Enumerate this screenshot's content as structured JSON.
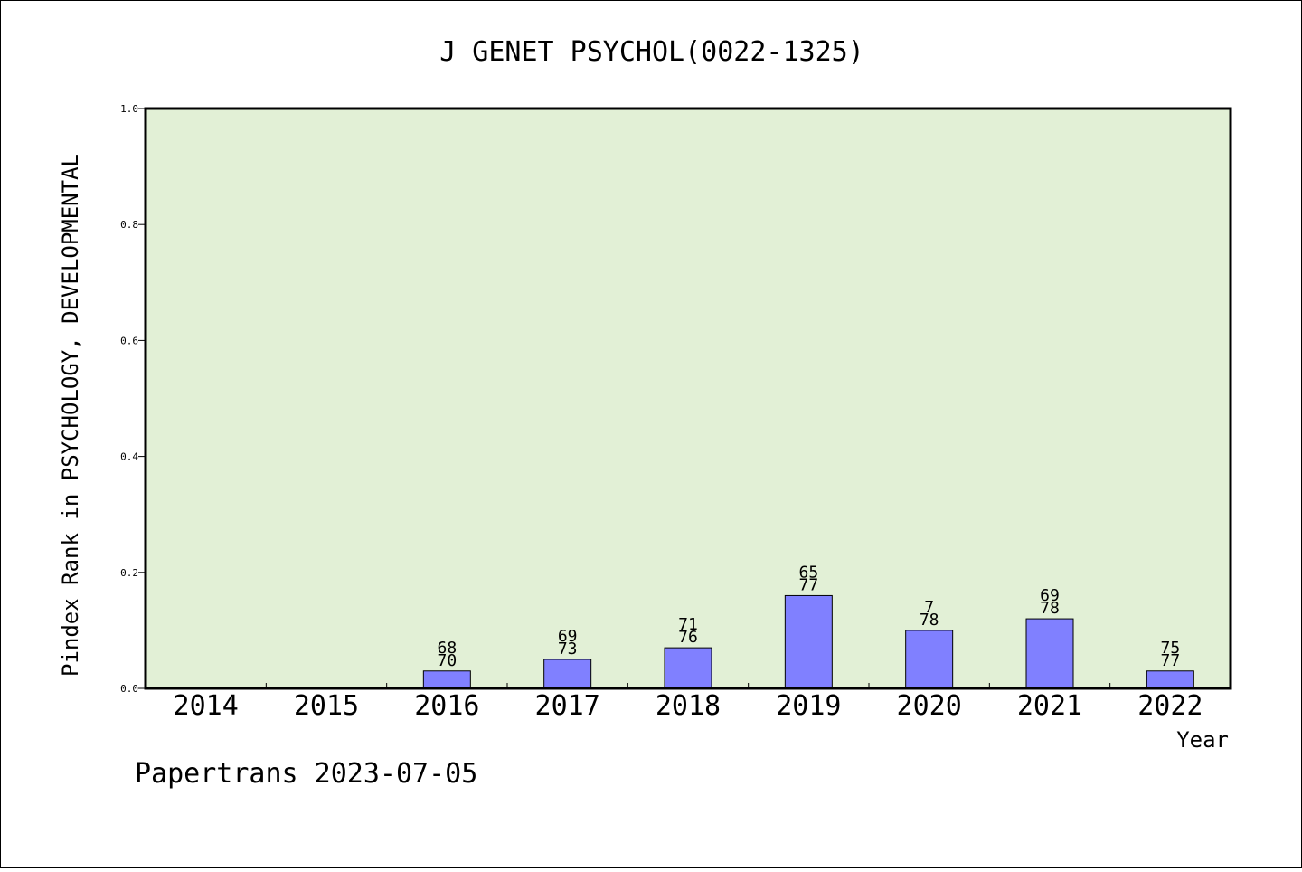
{
  "chart_data": {
    "type": "bar",
    "title": "J GENET PSYCHOL(0022-1325)",
    "xlabel": "Year",
    "ylabel": "Pindex Rank in PSYCHOLOGY, DEVELOPMENTAL",
    "categories": [
      "2014",
      "2015",
      "2016",
      "2017",
      "2018",
      "2019",
      "2020",
      "2021",
      "2022"
    ],
    "values": [
      0,
      0,
      0.03,
      0.05,
      0.07,
      0.16,
      0.1,
      0.12,
      0.03
    ],
    "bar_labels_top": [
      "",
      "",
      "68",
      "69",
      "71",
      "65",
      "7",
      "69",
      "75"
    ],
    "bar_labels_bottom": [
      "",
      "",
      "70",
      "73",
      "76",
      "77",
      "78",
      "78",
      "77"
    ],
    "ylim": [
      0,
      1.0
    ],
    "yticks": [
      "0.0",
      "0.2",
      "0.4",
      "0.6",
      "0.8",
      "1.0"
    ],
    "grid": false,
    "colors": {
      "plot_background": "#e2f0d6",
      "bar_fill": "#8080ff",
      "bar_stroke": "#000000"
    }
  },
  "footer": "Papertrans 2023-07-05"
}
